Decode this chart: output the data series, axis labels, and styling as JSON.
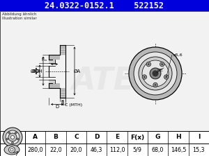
{
  "title_part": "24.0322-0152.1",
  "title_code": "522152",
  "title_bg": "#0000dd",
  "title_fg": "#ffffff",
  "note_line1": "Abbildung ähnlich",
  "note_line2": "Illustration similar",
  "table_headers": [
    "A",
    "B",
    "C",
    "D",
    "E",
    "F(x)",
    "G",
    "H",
    "I"
  ],
  "table_values": [
    "280,0",
    "22,0",
    "20,0",
    "46,3",
    "112,0",
    "5/9",
    "68,0",
    "146,5",
    "15,3"
  ],
  "bg_color": "#ffffff",
  "drawing_bg": "#f2f2f2",
  "line_color": "#000000",
  "disc_fill": "#d0d0d0",
  "hub_fill": "#b8b8b8",
  "watermark_color": "#e0e0e0"
}
